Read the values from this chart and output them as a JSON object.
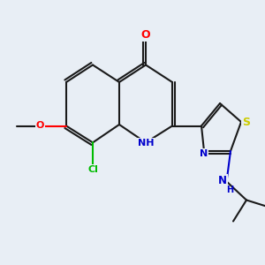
{
  "background_color": "#e8eef5",
  "bond_color": "#1a1a1a",
  "colors": {
    "O": "#ff0000",
    "N": "#0000cc",
    "S": "#cccc00",
    "Cl": "#00bb00",
    "C": "#1a1a1a",
    "methoxy_O": "#ff0000"
  },
  "lw": 1.5,
  "lw2": 1.5
}
